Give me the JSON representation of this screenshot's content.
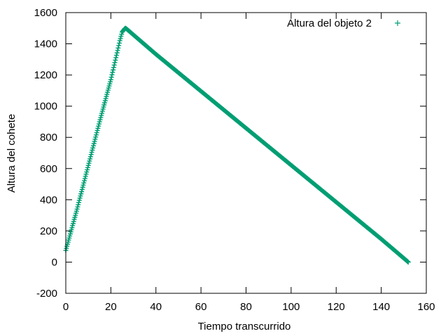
{
  "chart_data": {
    "type": "scatter",
    "title": "",
    "xlabel": "Tiempo transcurrido",
    "ylabel": "Altura del cohete",
    "xlim": [
      0,
      160
    ],
    "ylim": [
      -200,
      1600
    ],
    "xticks": [
      0,
      20,
      40,
      60,
      80,
      100,
      120,
      140,
      160
    ],
    "yticks": [
      -200,
      0,
      200,
      400,
      600,
      800,
      1000,
      1200,
      1400,
      1600
    ],
    "grid": false,
    "legend_position": "top-right",
    "marker": "+",
    "series": [
      {
        "name": "Altura del objeto 2",
        "color": "#009e73",
        "points": [
          [
            0,
            75
          ],
          [
            5,
            340
          ],
          [
            10,
            620
          ],
          [
            15,
            900
          ],
          [
            20,
            1170
          ],
          [
            24,
            1420
          ],
          [
            25,
            1475
          ],
          [
            26,
            1495
          ],
          [
            26.5,
            1500
          ],
          [
            27,
            1495
          ],
          [
            40,
            1333
          ],
          [
            60,
            1096
          ],
          [
            80,
            859
          ],
          [
            100,
            622
          ],
          [
            120,
            385
          ],
          [
            140,
            148
          ],
          [
            150,
            25
          ],
          [
            152,
            0
          ]
        ]
      }
    ]
  }
}
